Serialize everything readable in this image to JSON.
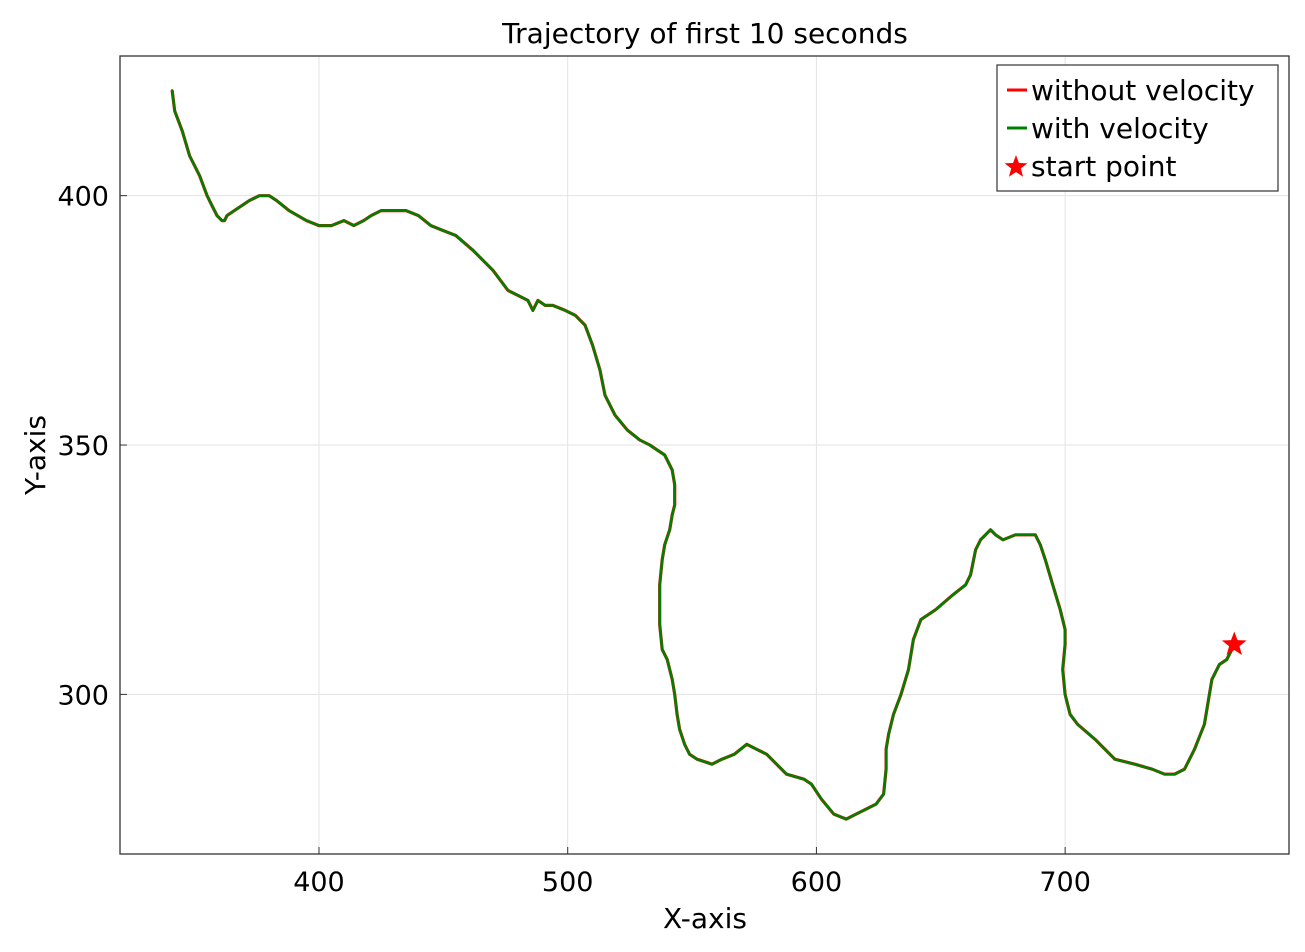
{
  "chart_data": {
    "type": "line",
    "title": "Trajectory of first 10 seconds",
    "xlabel": "X-axis",
    "ylabel": "Y-axis",
    "xlim": [
      320,
      790
    ],
    "ylim": [
      268,
      428
    ],
    "xticks": [
      400,
      500,
      600,
      700
    ],
    "yticks": [
      300,
      350,
      400
    ],
    "grid": true,
    "legend_position": "top-right",
    "series": [
      {
        "name": "without velocity",
        "color": "#ff0000",
        "x": [
          768,
          765,
          762,
          760,
          759,
          758,
          756,
          752,
          748,
          744,
          740,
          735,
          728,
          720,
          712,
          705,
          702,
          700,
          699,
          700,
          700,
          698,
          695,
          692,
          690,
          688,
          685,
          680,
          675,
          672,
          670,
          668,
          666,
          664,
          662,
          660,
          655,
          648,
          642,
          639,
          637,
          634,
          631,
          629,
          628,
          628,
          627,
          624,
          620,
          616,
          612,
          607,
          602,
          598,
          595,
          588,
          580,
          576,
          572,
          567,
          562,
          558,
          552,
          549,
          547,
          545,
          544,
          543,
          542,
          540,
          538,
          537,
          537,
          537,
          538,
          539,
          541,
          542,
          543,
          543,
          542,
          539,
          536,
          533,
          529,
          524,
          519,
          515,
          513,
          510,
          507,
          503,
          499,
          494,
          491,
          488,
          487,
          486,
          484,
          480,
          476,
          470,
          462,
          455,
          450,
          445,
          440,
          435,
          430,
          425,
          421,
          418,
          414,
          410,
          405,
          400,
          395,
          388,
          383,
          380,
          376,
          372,
          369,
          366,
          363,
          362,
          361,
          359,
          357,
          355,
          352,
          348,
          345,
          342,
          341
        ],
        "y": [
          310,
          307,
          306,
          304,
          303,
          300,
          294,
          289,
          285,
          284,
          284,
          285,
          286,
          287,
          291,
          294,
          296,
          300,
          305,
          310,
          313,
          317,
          322,
          327,
          330,
          332,
          332,
          332,
          331,
          332,
          333,
          332,
          331,
          329,
          324,
          322,
          320,
          317,
          315,
          311,
          305,
          300,
          296,
          292,
          289,
          285,
          280,
          278,
          277,
          276,
          275,
          276,
          279,
          282,
          283,
          284,
          288,
          289,
          290,
          288,
          287,
          286,
          287,
          288,
          290,
          293,
          296,
          300,
          303,
          307,
          309,
          314,
          318,
          322,
          327,
          330,
          333,
          336,
          338,
          342,
          345,
          348,
          349,
          350,
          351,
          353,
          356,
          360,
          365,
          370,
          374,
          376,
          377,
          378,
          378,
          379,
          378,
          377,
          379,
          380,
          381,
          385,
          389,
          392,
          393,
          394,
          396,
          397,
          397,
          397,
          396,
          395,
          394,
          395,
          394,
          394,
          395,
          397,
          399,
          400,
          400,
          399,
          398,
          397,
          396,
          395,
          395,
          396,
          398,
          400,
          404,
          408,
          413,
          417,
          421
        ]
      },
      {
        "name": "with velocity",
        "color": "#008000",
        "x": [
          768,
          765,
          762,
          760,
          759,
          758,
          756,
          752,
          748,
          744,
          740,
          735,
          728,
          720,
          712,
          705,
          702,
          700,
          699,
          700,
          700,
          698,
          695,
          692,
          690,
          688,
          685,
          680,
          675,
          672,
          670,
          668,
          666,
          664,
          662,
          660,
          655,
          648,
          642,
          639,
          637,
          634,
          631,
          629,
          628,
          628,
          627,
          624,
          620,
          616,
          612,
          607,
          602,
          598,
          595,
          588,
          580,
          576,
          572,
          567,
          562,
          558,
          552,
          549,
          547,
          545,
          544,
          543,
          542,
          540,
          538,
          537,
          537,
          537,
          538,
          539,
          541,
          542,
          543,
          543,
          542,
          539,
          536,
          533,
          529,
          524,
          519,
          515,
          513,
          510,
          507,
          503,
          499,
          494,
          491,
          488,
          487,
          486,
          484,
          480,
          476,
          470,
          462,
          455,
          450,
          445,
          440,
          435,
          430,
          425,
          421,
          418,
          414,
          410,
          405,
          400,
          395,
          388,
          383,
          380,
          376,
          372,
          369,
          366,
          363,
          362,
          361,
          359,
          357,
          355,
          352,
          348,
          345,
          342,
          341
        ],
        "y": [
          310,
          307,
          306,
          304,
          303,
          300,
          294,
          289,
          285,
          284,
          284,
          285,
          286,
          287,
          291,
          294,
          296,
          300,
          305,
          310,
          313,
          317,
          322,
          327,
          330,
          332,
          332,
          332,
          331,
          332,
          333,
          332,
          331,
          329,
          324,
          322,
          320,
          317,
          315,
          311,
          305,
          300,
          296,
          292,
          289,
          285,
          280,
          278,
          277,
          276,
          275,
          276,
          279,
          282,
          283,
          284,
          288,
          289,
          290,
          288,
          287,
          286,
          287,
          288,
          290,
          293,
          296,
          300,
          303,
          307,
          309,
          314,
          318,
          322,
          327,
          330,
          333,
          336,
          338,
          342,
          345,
          348,
          349,
          350,
          351,
          353,
          356,
          360,
          365,
          370,
          374,
          376,
          377,
          378,
          378,
          379,
          378,
          377,
          379,
          380,
          381,
          385,
          389,
          392,
          393,
          394,
          396,
          397,
          397,
          397,
          396,
          395,
          394,
          395,
          394,
          394,
          395,
          397,
          399,
          400,
          400,
          399,
          398,
          397,
          396,
          395,
          395,
          396,
          398,
          400,
          404,
          408,
          413,
          417,
          421
        ]
      },
      {
        "name": "start point",
        "type": "scatter",
        "marker": "star",
        "color": "#ff0000",
        "x": [
          768
        ],
        "y": [
          310
        ]
      }
    ]
  }
}
